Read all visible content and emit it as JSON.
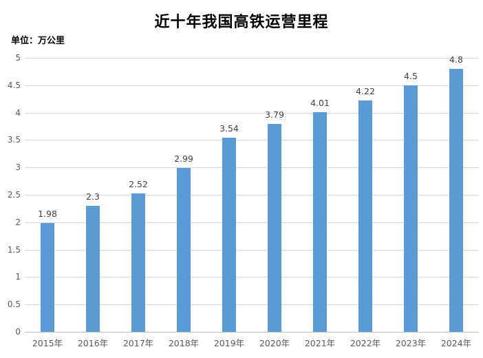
{
  "chart_data": {
    "type": "bar",
    "title": "近十年我国高铁运营里程",
    "unit_label": "单位：万公里",
    "categories": [
      "2015年",
      "2016年",
      "2017年",
      "2018年",
      "2019年",
      "2020年",
      "2021年",
      "2022年",
      "2023年",
      "2024年"
    ],
    "values": [
      1.98,
      2.3,
      2.52,
      2.99,
      3.54,
      3.79,
      4.01,
      4.22,
      4.5,
      4.8
    ],
    "value_labels": [
      "1.98",
      "2.3",
      "2.52",
      "2.99",
      "3.54",
      "3.79",
      "4.01",
      "4.22",
      "4.5",
      "4.8"
    ],
    "xlabel": "",
    "ylabel": "",
    "ylim": [
      0,
      5
    ],
    "ytick_step": 0.5,
    "ytick_labels": [
      "0",
      "0.5",
      "1",
      "1.5",
      "2",
      "2.5",
      "3",
      "3.5",
      "4",
      "4.5",
      "5"
    ],
    "grid": true,
    "legend": false,
    "data_labels": true,
    "colors": {
      "bar": "#5b9bd5",
      "gridline": "#d9d9d9",
      "axis_line": "#bfbfbf",
      "tick_label": "#595959",
      "data_label": "#404040",
      "title": "#000000"
    }
  }
}
